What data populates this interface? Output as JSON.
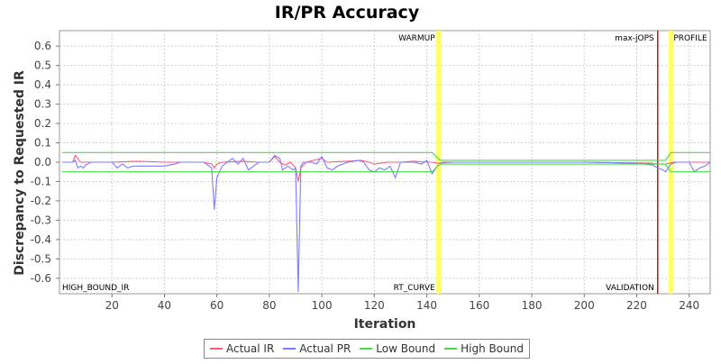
{
  "chart_data": {
    "type": "line",
    "title": "IR/PR Accuracy",
    "xlabel": "Iteration",
    "ylabel": "Discrepancy to Requested IR",
    "xlim": [
      0,
      248
    ],
    "ylim": [
      -0.68,
      0.68
    ],
    "x_ticks": [
      20,
      40,
      60,
      80,
      100,
      120,
      140,
      160,
      180,
      200,
      220,
      240
    ],
    "y_ticks": [
      0.6,
      0.5,
      0.4,
      0.3,
      0.2,
      0.1,
      0.0,
      -0.1,
      -0.2,
      -0.3,
      -0.4,
      -0.5,
      -0.6
    ],
    "grid": true,
    "legend_position": "bottom-center",
    "series": [
      {
        "name": "Actual IR",
        "color": "#ff5a78",
        "points": [
          [
            1,
            0.0
          ],
          [
            5,
            0.0
          ],
          [
            6,
            0.035
          ],
          [
            8,
            0.0
          ],
          [
            20,
            0.0
          ],
          [
            30,
            0.005
          ],
          [
            40,
            0.0
          ],
          [
            50,
            0.0
          ],
          [
            55,
            0.0
          ],
          [
            58,
            -0.01
          ],
          [
            59,
            -0.03
          ],
          [
            60,
            -0.01
          ],
          [
            62,
            0.0
          ],
          [
            70,
            0.005
          ],
          [
            75,
            0.0
          ],
          [
            80,
            0.0
          ],
          [
            82,
            0.03
          ],
          [
            84,
            0.0
          ],
          [
            86,
            -0.015
          ],
          [
            88,
            0.0
          ],
          [
            90,
            -0.03
          ],
          [
            91,
            -0.1
          ],
          [
            92,
            -0.03
          ],
          [
            94,
            0.0
          ],
          [
            100,
            0.02
          ],
          [
            102,
            0.0
          ],
          [
            110,
            0.005
          ],
          [
            115,
            0.01
          ],
          [
            118,
            0.0
          ],
          [
            120,
            -0.01
          ],
          [
            125,
            0.0
          ],
          [
            130,
            0.0
          ],
          [
            135,
            0.005
          ],
          [
            140,
            0.0
          ],
          [
            142,
            0.0
          ],
          [
            144,
            -0.005
          ],
          [
            150,
            0.0
          ],
          [
            200,
            0.0
          ],
          [
            225,
            -0.005
          ],
          [
            228,
            -0.01
          ],
          [
            231,
            -0.01
          ],
          [
            234,
            0.0
          ],
          [
            246,
            0.0
          ],
          [
            248,
            0.0
          ]
        ]
      },
      {
        "name": "Actual PR",
        "color": "#7b7bff",
        "points": [
          [
            1,
            0.0
          ],
          [
            5,
            0.0
          ],
          [
            6,
            0.01
          ],
          [
            7,
            -0.03
          ],
          [
            8,
            -0.02
          ],
          [
            9,
            -0.03
          ],
          [
            10,
            -0.015
          ],
          [
            12,
            0.0
          ],
          [
            20,
            0.0
          ],
          [
            22,
            -0.03
          ],
          [
            24,
            -0.01
          ],
          [
            26,
            -0.03
          ],
          [
            28,
            -0.02
          ],
          [
            34,
            -0.02
          ],
          [
            40,
            -0.02
          ],
          [
            44,
            -0.01
          ],
          [
            46,
            0.0
          ],
          [
            50,
            0.0
          ],
          [
            55,
            0.0
          ],
          [
            58,
            -0.03
          ],
          [
            59,
            -0.245
          ],
          [
            60,
            -0.08
          ],
          [
            62,
            -0.02
          ],
          [
            64,
            0.0
          ],
          [
            66,
            0.02
          ],
          [
            68,
            -0.01
          ],
          [
            70,
            0.02
          ],
          [
            72,
            -0.04
          ],
          [
            74,
            -0.02
          ],
          [
            76,
            0.0
          ],
          [
            80,
            0.0
          ],
          [
            82,
            0.035
          ],
          [
            84,
            0.02
          ],
          [
            85,
            -0.04
          ],
          [
            87,
            -0.02
          ],
          [
            89,
            -0.04
          ],
          [
            90,
            -0.03
          ],
          [
            91,
            -0.67
          ],
          [
            92,
            -0.02
          ],
          [
            93,
            0.0
          ],
          [
            96,
            0.0
          ],
          [
            98,
            -0.01
          ],
          [
            100,
            0.03
          ],
          [
            102,
            -0.03
          ],
          [
            104,
            -0.04
          ],
          [
            106,
            -0.02
          ],
          [
            110,
            0.0
          ],
          [
            114,
            0.01
          ],
          [
            116,
            0.0
          ],
          [
            118,
            -0.04
          ],
          [
            120,
            -0.05
          ],
          [
            122,
            -0.03
          ],
          [
            124,
            -0.04
          ],
          [
            126,
            -0.02
          ],
          [
            128,
            -0.08
          ],
          [
            129,
            -0.04
          ],
          [
            130,
            0.0
          ],
          [
            135,
            0.0
          ],
          [
            138,
            -0.01
          ],
          [
            140,
            0.01
          ],
          [
            142,
            -0.06
          ],
          [
            144,
            -0.02
          ],
          [
            146,
            0.0
          ],
          [
            200,
            0.0
          ],
          [
            220,
            -0.005
          ],
          [
            226,
            -0.015
          ],
          [
            228,
            -0.03
          ],
          [
            230,
            -0.04
          ],
          [
            231,
            -0.05
          ],
          [
            233,
            -0.01
          ],
          [
            235,
            0.0
          ],
          [
            240,
            0.0
          ],
          [
            242,
            -0.05
          ],
          [
            244,
            -0.03
          ],
          [
            246,
            -0.02
          ],
          [
            248,
            0.0
          ]
        ]
      },
      {
        "name": "Low Bound",
        "color": "#44dd44",
        "points": [
          [
            1,
            -0.05
          ],
          [
            142,
            -0.05
          ],
          [
            145,
            -0.01
          ],
          [
            231,
            -0.01
          ],
          [
            233,
            -0.05
          ],
          [
            248,
            -0.05
          ]
        ]
      },
      {
        "name": "High Bound",
        "color": "#44dd44",
        "points": [
          [
            1,
            0.05
          ],
          [
            142,
            0.05
          ],
          [
            145,
            0.01
          ],
          [
            231,
            0.01
          ],
          [
            233,
            0.05
          ],
          [
            248,
            0.05
          ]
        ]
      }
    ],
    "markers": [
      {
        "label": "WARMUP",
        "x": 144.5,
        "color": "#ffff66",
        "band": true,
        "label_position": "top-left"
      },
      {
        "label": "RT_CURVE",
        "x": 144.5,
        "color": "#ffff66",
        "band": true,
        "label_position": "bottom-left"
      },
      {
        "label": "max-jOPS",
        "x": 228,
        "color": "#cc0000",
        "band": false,
        "label_position": "top-left"
      },
      {
        "label": "VALIDATION",
        "x": 228,
        "color": "#cc0000",
        "band": false,
        "label_position": "bottom-left"
      },
      {
        "label": "PROFILE",
        "x": 233,
        "color": "#ffff66",
        "band": true,
        "label_position": "top-right"
      },
      {
        "label": "HIGH_BOUND_IR",
        "x": 0,
        "color": "#000000",
        "band": false,
        "label_position": "bottom-right"
      }
    ]
  }
}
